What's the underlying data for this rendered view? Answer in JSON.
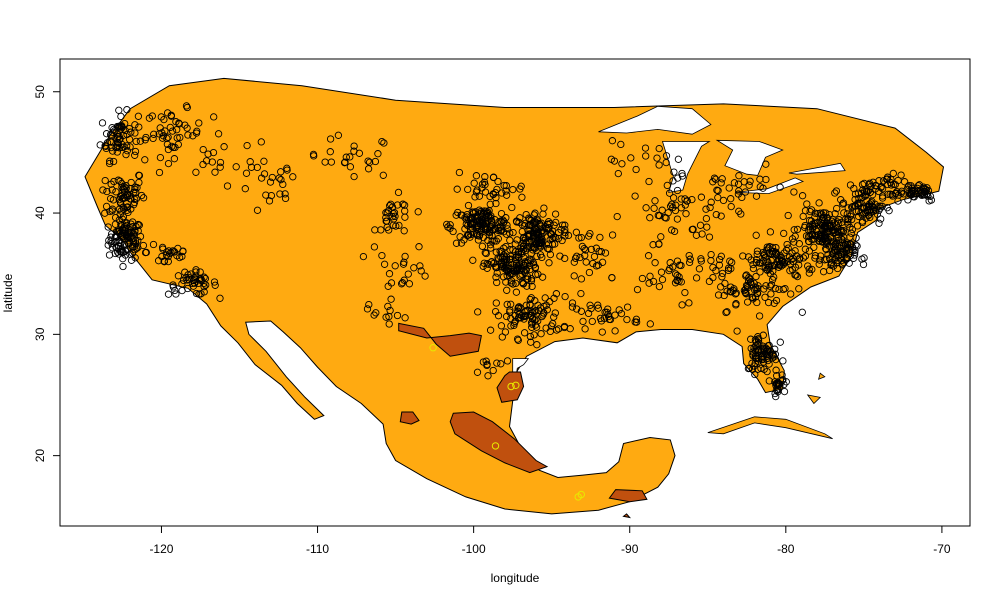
{
  "chart_data": {
    "type": "scatter",
    "title": "",
    "xlabel": "longitude",
    "ylabel": "latitude",
    "xlim": [
      -126.5,
      -68.2
    ],
    "ylim": [
      14.2,
      52.7
    ],
    "xticks": [
      "-120",
      "-110",
      "-100",
      "-90",
      "-80",
      "-70"
    ],
    "yticks": [
      "20",
      "30",
      "40",
      "50"
    ],
    "grid": false,
    "legend": "none",
    "colors": {
      "region_fill": "#FFAA11",
      "subregion_fill": "#C0500E",
      "water": "#FFFFFF",
      "point_stroke": "#000000",
      "highlight_point_stroke": "#E8E800"
    },
    "region_outline": [
      [
        -124.9,
        43.0
      ],
      [
        -123.4,
        46.2
      ],
      [
        -122.0,
        48.6
      ],
      [
        -119.5,
        50.5
      ],
      [
        -116.0,
        51.1
      ],
      [
        -111.0,
        50.5
      ],
      [
        -105.0,
        49.3
      ],
      [
        -98.0,
        48.7
      ],
      [
        -91.0,
        48.7
      ],
      [
        -84.0,
        49.0
      ],
      [
        -78.0,
        48.6
      ],
      [
        -73.0,
        47.0
      ],
      [
        -71.0,
        45.0
      ],
      [
        -69.9,
        43.8
      ],
      [
        -70.2,
        41.8
      ],
      [
        -72.5,
        41.1
      ],
      [
        -74.0,
        40.4
      ],
      [
        -74.2,
        39.4
      ],
      [
        -75.4,
        38.4
      ],
      [
        -75.8,
        36.5
      ],
      [
        -76.6,
        34.8
      ],
      [
        -78.4,
        33.9
      ],
      [
        -80.2,
        32.3
      ],
      [
        -81.2,
        30.8
      ],
      [
        -81.0,
        29.2
      ],
      [
        -80.1,
        27.0
      ],
      [
        -80.2,
        25.5
      ],
      [
        -81.3,
        25.2
      ],
      [
        -81.8,
        26.3
      ],
      [
        -82.7,
        27.6
      ],
      [
        -82.8,
        29.0
      ],
      [
        -84.0,
        30.0
      ],
      [
        -86.0,
        30.4
      ],
      [
        -88.0,
        30.4
      ],
      [
        -89.6,
        30.2
      ],
      [
        -90.8,
        29.3
      ],
      [
        -93.0,
        29.7
      ],
      [
        -94.8,
        29.4
      ],
      [
        -96.6,
        28.2
      ],
      [
        -97.2,
        27.0
      ],
      [
        -97.5,
        24.5
      ],
      [
        -97.7,
        22.4
      ],
      [
        -96.9,
        20.5
      ],
      [
        -95.8,
        18.8
      ],
      [
        -94.6,
        18.2
      ],
      [
        -93.0,
        18.4
      ],
      [
        -91.5,
        18.6
      ],
      [
        -90.7,
        19.5
      ],
      [
        -90.4,
        21.0
      ],
      [
        -88.7,
        21.5
      ],
      [
        -87.4,
        21.3
      ],
      [
        -87.1,
        20.0
      ],
      [
        -87.5,
        18.5
      ],
      [
        -88.2,
        17.4
      ],
      [
        -90.0,
        16.2
      ],
      [
        -92.0,
        15.5
      ],
      [
        -95.0,
        15.2
      ],
      [
        -98.0,
        15.6
      ],
      [
        -100.5,
        16.6
      ],
      [
        -103.0,
        18.1
      ],
      [
        -105.0,
        19.6
      ],
      [
        -105.6,
        21.0
      ],
      [
        -105.8,
        22.6
      ],
      [
        -107.2,
        24.3
      ],
      [
        -108.8,
        25.7
      ],
      [
        -110.0,
        27.3
      ],
      [
        -111.1,
        28.9
      ],
      [
        -112.2,
        30.2
      ],
      [
        -113.0,
        31.1
      ],
      [
        -114.6,
        31.0
      ],
      [
        -114.4,
        30.0
      ],
      [
        -113.3,
        28.6
      ],
      [
        -112.0,
        26.5
      ],
      [
        -110.8,
        24.8
      ],
      [
        -109.6,
        23.3
      ],
      [
        -110.2,
        23.0
      ],
      [
        -111.3,
        24.3
      ],
      [
        -112.3,
        25.8
      ],
      [
        -114.0,
        27.5
      ],
      [
        -115.1,
        29.3
      ],
      [
        -116.2,
        30.7
      ],
      [
        -117.1,
        32.5
      ],
      [
        -118.3,
        33.8
      ],
      [
        -120.6,
        34.5
      ],
      [
        -121.9,
        36.6
      ],
      [
        -122.5,
        37.8
      ],
      [
        -123.6,
        39.0
      ],
      [
        -124.1,
        40.5
      ],
      [
        -124.9,
        43.0
      ]
    ],
    "water_bodies": [
      {
        "name": "",
        "points": [
          [
            -92.0,
            46.7
          ],
          [
            -89.5,
            48.0
          ],
          [
            -88.2,
            48.8
          ],
          [
            -86.0,
            48.6
          ],
          [
            -84.8,
            47.3
          ],
          [
            -86.0,
            46.5
          ],
          [
            -88.2,
            46.9
          ],
          [
            -90.2,
            46.6
          ]
        ]
      },
      {
        "name": "",
        "points": [
          [
            -87.9,
            45.9
          ],
          [
            -87.2,
            43.0
          ],
          [
            -87.5,
            41.7
          ],
          [
            -86.6,
            41.9
          ],
          [
            -86.3,
            43.2
          ],
          [
            -85.4,
            45.5
          ],
          [
            -84.9,
            45.9
          ]
        ]
      },
      {
        "name": "",
        "points": [
          [
            -84.4,
            46.0
          ],
          [
            -81.7,
            45.9
          ],
          [
            -80.2,
            45.2
          ],
          [
            -81.3,
            44.6
          ],
          [
            -81.8,
            43.1
          ],
          [
            -82.5,
            43.2
          ],
          [
            -83.9,
            43.9
          ],
          [
            -83.4,
            45.2
          ]
        ]
      },
      {
        "name": "",
        "points": [
          [
            -83.2,
            41.7
          ],
          [
            -81.2,
            42.0
          ],
          [
            -79.4,
            42.9
          ],
          [
            -78.9,
            42.6
          ],
          [
            -81.1,
            41.6
          ]
        ]
      },
      {
        "name": "",
        "points": [
          [
            -79.8,
            43.3
          ],
          [
            -76.5,
            44.1
          ],
          [
            -76.2,
            43.5
          ],
          [
            -79.3,
            43.2
          ]
        ]
      },
      {
        "name": "",
        "points": [
          [
            -97.5,
            28.0
          ],
          [
            -96.5,
            28.0
          ],
          [
            -96.8,
            27.5
          ],
          [
            -97.2,
            27.2
          ],
          [
            -97.5,
            24.8
          ]
        ]
      }
    ],
    "islands": [
      {
        "name": "",
        "points": [
          [
            -85.0,
            21.9
          ],
          [
            -82.0,
            23.2
          ],
          [
            -80.0,
            23.0
          ],
          [
            -77.5,
            21.8
          ],
          [
            -77.0,
            21.4
          ],
          [
            -80.0,
            22.3
          ],
          [
            -82.0,
            22.7
          ],
          [
            -84.0,
            21.8
          ]
        ]
      },
      {
        "name": "",
        "points": [
          [
            -77.8,
            26.8
          ],
          [
            -77.5,
            26.5
          ],
          [
            -77.9,
            26.3
          ]
        ]
      },
      {
        "name": "",
        "points": [
          [
            -78.6,
            25.0
          ],
          [
            -78.2,
            24.3
          ],
          [
            -77.8,
            24.8
          ]
        ]
      }
    ],
    "subregions": [
      {
        "name": "",
        "points": [
          [
            -104.8,
            30.9
          ],
          [
            -103.2,
            30.5
          ],
          [
            -102.4,
            29.2
          ],
          [
            -101.5,
            28.2
          ],
          [
            -99.7,
            28.6
          ],
          [
            -99.5,
            29.9
          ],
          [
            -100.3,
            30.1
          ],
          [
            -101.5,
            29.9
          ],
          [
            -103.0,
            29.7
          ],
          [
            -104.8,
            30.3
          ]
        ]
      },
      {
        "name": "",
        "points": [
          [
            -97.7,
            26.9
          ],
          [
            -97.0,
            26.9
          ],
          [
            -96.8,
            25.7
          ],
          [
            -97.2,
            24.6
          ],
          [
            -98.2,
            24.4
          ],
          [
            -98.5,
            25.6
          ],
          [
            -98.0,
            26.6
          ]
        ]
      },
      {
        "name": "",
        "points": [
          [
            -101.3,
            23.5
          ],
          [
            -100.0,
            23.6
          ],
          [
            -98.8,
            22.8
          ],
          [
            -97.4,
            21.4
          ],
          [
            -96.0,
            19.6
          ],
          [
            -95.3,
            19.1
          ],
          [
            -96.4,
            18.6
          ],
          [
            -98.0,
            19.4
          ],
          [
            -99.5,
            20.4
          ],
          [
            -101.2,
            21.8
          ],
          [
            -101.5,
            22.8
          ]
        ]
      },
      {
        "name": "",
        "points": [
          [
            -104.6,
            23.6
          ],
          [
            -103.9,
            23.6
          ],
          [
            -103.5,
            22.9
          ],
          [
            -104.0,
            22.6
          ],
          [
            -104.7,
            22.8
          ]
        ]
      },
      {
        "name": "",
        "points": [
          [
            -90.9,
            17.2
          ],
          [
            -89.2,
            17.1
          ],
          [
            -88.9,
            16.4
          ],
          [
            -90.0,
            16.2
          ],
          [
            -91.3,
            16.5
          ]
        ]
      },
      {
        "name": "",
        "points": [
          [
            -90.2,
            15.2
          ],
          [
            -90.0,
            14.9
          ],
          [
            -90.4,
            15.0
          ]
        ]
      }
    ],
    "highlight_points": [
      [
        -102.6,
        28.9
      ],
      [
        -97.6,
        25.7
      ],
      [
        -97.3,
        25.8
      ],
      [
        -98.6,
        20.8
      ],
      [
        -93.3,
        16.6
      ],
      [
        -93.1,
        16.8
      ]
    ],
    "clusters": [
      {
        "center": [
          -122.3,
          37.8
        ],
        "spread": [
          0.9,
          1.4
        ],
        "count": 110
      },
      {
        "center": [
          -122.5,
          41.5
        ],
        "spread": [
          1.2,
          1.8
        ],
        "count": 70
      },
      {
        "center": [
          -122.7,
          46.3
        ],
        "spread": [
          1.0,
          1.6
        ],
        "count": 70
      },
      {
        "center": [
          -119.2,
          46.6
        ],
        "spread": [
          1.5,
          1.6
        ],
        "count": 45
      },
      {
        "center": [
          -118.0,
          34.2
        ],
        "spread": [
          1.3,
          0.8
        ],
        "count": 45
      },
      {
        "center": [
          -119.5,
          36.8
        ],
        "spread": [
          1.2,
          1.2
        ],
        "count": 25
      },
      {
        "center": [
          -116.0,
          44.0
        ],
        "spread": [
          2.5,
          2.0
        ],
        "count": 20
      },
      {
        "center": [
          -113.0,
          42.0
        ],
        "spread": [
          1.5,
          2.0
        ],
        "count": 20
      },
      {
        "center": [
          -108.0,
          44.5
        ],
        "spread": [
          2.5,
          1.5
        ],
        "count": 25
      },
      {
        "center": [
          -105.0,
          39.5
        ],
        "spread": [
          1.0,
          1.5
        ],
        "count": 30
      },
      {
        "center": [
          -104.5,
          35.5
        ],
        "spread": [
          1.5,
          1.5
        ],
        "count": 20
      },
      {
        "center": [
          -99.5,
          39.0
        ],
        "spread": [
          1.6,
          1.2
        ],
        "count": 150
      },
      {
        "center": [
          -96.0,
          38.3
        ],
        "spread": [
          1.3,
          1.5
        ],
        "count": 140
      },
      {
        "center": [
          -97.5,
          35.5
        ],
        "spread": [
          1.4,
          1.4
        ],
        "count": 130
      },
      {
        "center": [
          -96.5,
          31.5
        ],
        "spread": [
          1.8,
          1.5
        ],
        "count": 90
      },
      {
        "center": [
          -99.0,
          42.0
        ],
        "spread": [
          2.0,
          1.0
        ],
        "count": 35
      },
      {
        "center": [
          -92.5,
          36.5
        ],
        "spread": [
          2.0,
          2.0
        ],
        "count": 40
      },
      {
        "center": [
          -91.5,
          31.5
        ],
        "spread": [
          1.8,
          1.0
        ],
        "count": 35
      },
      {
        "center": [
          -86.5,
          40.0
        ],
        "spread": [
          3.0,
          2.0
        ],
        "count": 55
      },
      {
        "center": [
          -86.5,
          35.0
        ],
        "spread": [
          2.5,
          1.8
        ],
        "count": 50
      },
      {
        "center": [
          -83.0,
          42.0
        ],
        "spread": [
          2.5,
          1.3
        ],
        "count": 30
      },
      {
        "center": [
          -80.5,
          36.0
        ],
        "spread": [
          2.0,
          1.5
        ],
        "count": 110
      },
      {
        "center": [
          -77.5,
          38.8
        ],
        "spread": [
          1.3,
          1.3
        ],
        "count": 140
      },
      {
        "center": [
          -76.7,
          36.5
        ],
        "spread": [
          1.0,
          1.2
        ],
        "count": 80
      },
      {
        "center": [
          -75.0,
          40.5
        ],
        "spread": [
          1.2,
          1.2
        ],
        "count": 70
      },
      {
        "center": [
          -73.5,
          42.0
        ],
        "spread": [
          1.5,
          1.0
        ],
        "count": 60
      },
      {
        "center": [
          -71.5,
          41.8
        ],
        "spread": [
          1.0,
          0.7
        ],
        "count": 40
      },
      {
        "center": [
          -82.0,
          33.5
        ],
        "spread": [
          1.8,
          1.3
        ],
        "count": 60
      },
      {
        "center": [
          -81.5,
          28.5
        ],
        "spread": [
          0.8,
          1.4
        ],
        "count": 75
      },
      {
        "center": [
          -80.5,
          26.0
        ],
        "spread": [
          0.4,
          0.7
        ],
        "count": 25
      },
      {
        "center": [
          -89.0,
          44.0
        ],
        "spread": [
          2.5,
          1.5
        ],
        "count": 20
      },
      {
        "center": [
          -106.0,
          31.8
        ],
        "spread": [
          2.0,
          1.2
        ],
        "count": 12
      },
      {
        "center": [
          -99.0,
          27.5
        ],
        "spread": [
          1.5,
          1.0
        ],
        "count": 10
      }
    ]
  }
}
